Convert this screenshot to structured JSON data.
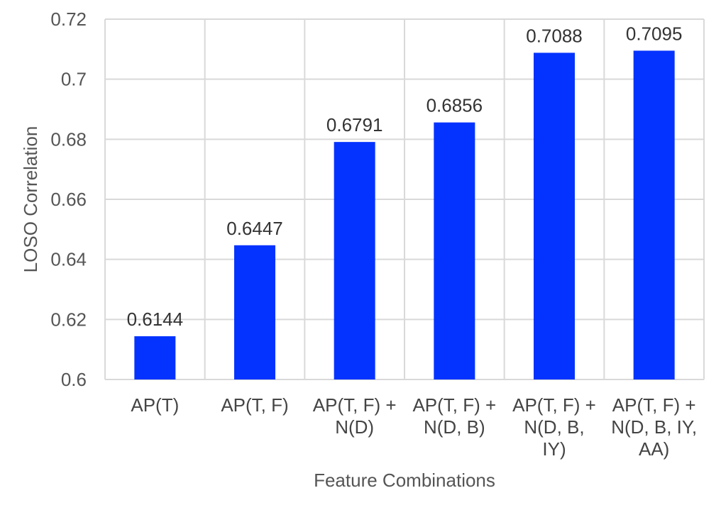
{
  "chart_data": {
    "type": "bar",
    "title": "",
    "xlabel": "Feature Combinations",
    "ylabel": "LOSO Correlation",
    "ylim": [
      0.6,
      0.72
    ],
    "yticks": [
      "0.6",
      "0.62",
      "0.64",
      "0.66",
      "0.68",
      "0.7",
      "0.72"
    ],
    "grid": true,
    "legend": "none",
    "bar_color": "#0433ff",
    "categories": [
      [
        "AP(T)"
      ],
      [
        "AP(T, F)"
      ],
      [
        "AP(T, F) +",
        "N(D)"
      ],
      [
        "AP(T, F) +",
        "N(D, B)"
      ],
      [
        "AP(T, F) +",
        "N(D, B,",
        "IY)"
      ],
      [
        "AP(T, F) +",
        "N(D, B, IY,",
        "AA)"
      ]
    ],
    "values": [
      0.6144,
      0.6447,
      0.6791,
      0.6856,
      0.7088,
      0.7095
    ],
    "data_labels": [
      "0.6144",
      "0.6447",
      "0.6791",
      "0.6856",
      "0.7088",
      "0.7095"
    ]
  }
}
